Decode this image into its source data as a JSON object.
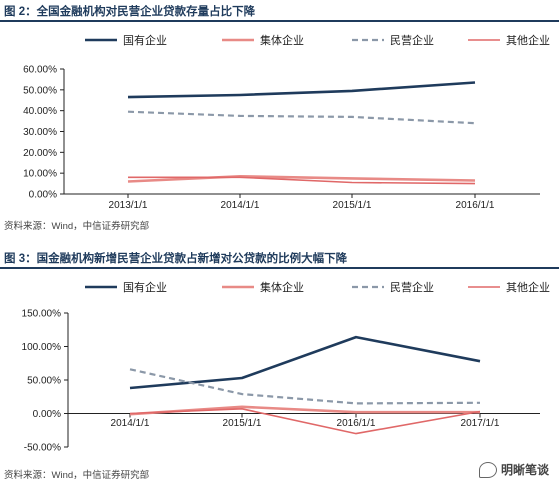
{
  "figure1": {
    "title": "图 2：全国金融机构对民营企业贷款存量占比下降",
    "source": "资料来源：Wind，中信证券研究部"
  },
  "figure2": {
    "title": "图 3：国金融机构新增民营企业贷款占新增对公贷款的比例大幅下降",
    "source": "资料来源：Wind，中信证券研究部"
  },
  "watermark": {
    "text": "明晰笔谈"
  },
  "colors": {
    "navy": "#1f3b5c",
    "salmon": "#e88a86",
    "gray": "#8b98a8",
    "pink": "#e06868",
    "rule": "#1f3b5c"
  },
  "chart_data": [
    {
      "type": "line",
      "categories": [
        "2013/1/1",
        "2014/1/1",
        "2015/1/1",
        "2016/1/1"
      ],
      "ylim": [
        0,
        60
      ],
      "yticks": [
        "0.00%",
        "10.00%",
        "20.00%",
        "30.00%",
        "40.00%",
        "50.00%",
        "60.00%"
      ],
      "series": [
        {
          "name": "国有企业",
          "style": "solid-thick",
          "color": "#1f3b5c",
          "values": [
            46.5,
            47.5,
            49.5,
            53.5
          ]
        },
        {
          "name": "集体企业",
          "style": "solid-thick",
          "color": "#e88a86",
          "values": [
            6.0,
            8.5,
            7.5,
            6.5
          ]
        },
        {
          "name": "民营企业",
          "style": "dashed",
          "color": "#8b98a8",
          "values": [
            39.5,
            37.5,
            37.0,
            34.0
          ]
        },
        {
          "name": "其他企业",
          "style": "solid-thin",
          "color": "#e06868",
          "values": [
            8.0,
            8.0,
            5.5,
            5.0
          ]
        }
      ]
    },
    {
      "type": "line",
      "categories": [
        "2014/1/1",
        "2015/1/1",
        "2016/1/1",
        "2017/1/1"
      ],
      "ylim": [
        -50,
        150
      ],
      "yticks": [
        "-50.00%",
        "0.00%",
        "50.00%",
        "100.00%",
        "150.00%"
      ],
      "series": [
        {
          "name": "国有企业",
          "style": "solid-thick",
          "color": "#1f3b5c",
          "values": [
            38,
            53,
            114,
            78
          ]
        },
        {
          "name": "集体企业",
          "style": "solid-thick",
          "color": "#e88a86",
          "values": [
            -1,
            10,
            2,
            2
          ]
        },
        {
          "name": "民营企业",
          "style": "dashed",
          "color": "#8b98a8",
          "values": [
            66,
            29,
            15,
            16
          ]
        },
        {
          "name": "其他企业",
          "style": "solid-thin",
          "color": "#e06868",
          "values": [
            0,
            7,
            -30,
            3
          ]
        }
      ]
    }
  ]
}
